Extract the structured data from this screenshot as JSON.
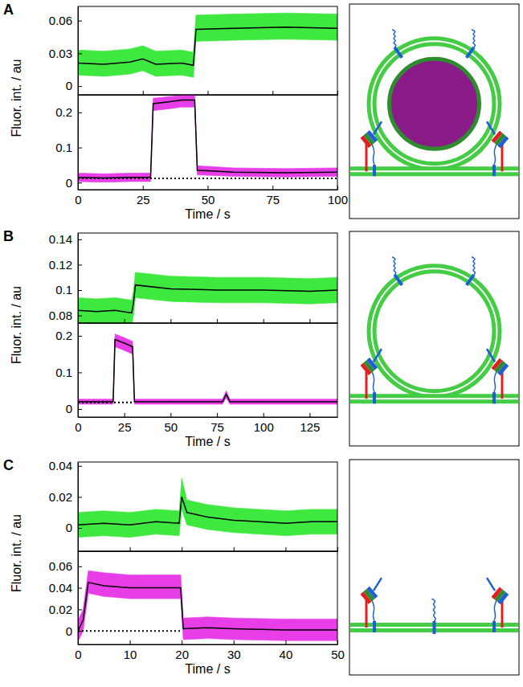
{
  "chart_data": [
    {
      "type": "line",
      "title": "A",
      "y_label": "Fluor. int. / au",
      "tick_labels": "y",
      "xlim": [
        0,
        100
      ],
      "xticks": [
        0,
        25,
        50,
        75,
        100
      ],
      "ylim": [
        -0.008,
        0.073
      ],
      "yticks": [
        0,
        0.03,
        0.06
      ],
      "series": [
        {
          "type": "area",
          "color": "#3ee83e",
          "x": [
            0,
            10,
            20,
            25,
            30,
            40,
            44.5,
            45.5,
            60,
            80,
            100
          ],
          "lower": [
            0.01,
            0.009,
            0.011,
            0.014,
            0.009,
            0.01,
            0.008,
            0.041,
            0.042,
            0.043,
            0.042
          ],
          "upper": [
            0.033,
            0.032,
            0.034,
            0.037,
            0.032,
            0.033,
            0.031,
            0.065,
            0.066,
            0.067,
            0.066
          ]
        },
        {
          "type": "line",
          "color": "#000000",
          "x": [
            0,
            10,
            20,
            25,
            30,
            40,
            44.5,
            45.5,
            60,
            80,
            100
          ],
          "values": [
            0.021,
            0.02,
            0.022,
            0.025,
            0.02,
            0.021,
            0.019,
            0.052,
            0.053,
            0.054,
            0.053
          ]
        }
      ]
    },
    {
      "type": "line",
      "x_label": "Time / s",
      "xlim": [
        0,
        100
      ],
      "xticks": [
        0,
        25,
        50,
        75,
        100
      ],
      "ylim": [
        -0.02,
        0.25
      ],
      "yticks": [
        0,
        0.1,
        0.2
      ],
      "series": [
        {
          "type": "area",
          "color": "#e83ee8",
          "x": [
            0,
            10,
            20,
            28,
            29,
            35,
            40,
            45,
            46,
            60,
            80,
            100
          ],
          "lower": [
            0.003,
            0.001,
            0.003,
            0.003,
            0.205,
            0.21,
            0.215,
            0.215,
            0.022,
            0.018,
            0.016,
            0.018
          ],
          "upper": [
            0.027,
            0.025,
            0.027,
            0.027,
            0.24,
            0.245,
            0.248,
            0.248,
            0.048,
            0.042,
            0.04,
            0.042
          ]
        },
        {
          "type": "line",
          "color": "#000000",
          "x": [
            0,
            10,
            20,
            28,
            29,
            35,
            40,
            45,
            46,
            60,
            80,
            100
          ],
          "values": [
            0.015,
            0.013,
            0.015,
            0.015,
            0.225,
            0.23,
            0.235,
            0.235,
            0.035,
            0.03,
            0.028,
            0.03
          ]
        },
        {
          "type": "line",
          "color": "#000000",
          "line_style": "dotted",
          "x": [
            0,
            100
          ],
          "values": [
            0.012,
            0.012
          ]
        }
      ]
    },
    {
      "type": "line",
      "title": "B",
      "y_label": "Fluor. int. / au",
      "tick_labels": "y",
      "xlim": [
        0,
        140
      ],
      "xticks": [
        0,
        25,
        50,
        75,
        100,
        125
      ],
      "ylim": [
        0.074,
        0.145
      ],
      "yticks": [
        0.08,
        0.1,
        0.12,
        0.14
      ],
      "series": [
        {
          "type": "area",
          "color": "#3ee83e",
          "x": [
            0,
            10,
            20,
            29,
            30,
            31,
            50,
            75,
            100,
            125,
            140
          ],
          "lower": [
            0.074,
            0.073,
            0.074,
            0.072,
            0.08,
            0.094,
            0.091,
            0.09,
            0.09,
            0.089,
            0.09
          ],
          "upper": [
            0.094,
            0.093,
            0.094,
            0.092,
            0.1,
            0.114,
            0.111,
            0.11,
            0.11,
            0.109,
            0.11
          ]
        },
        {
          "type": "line",
          "color": "#000000",
          "x": [
            0,
            10,
            20,
            29,
            30,
            31,
            50,
            75,
            100,
            125,
            140
          ],
          "values": [
            0.084,
            0.083,
            0.084,
            0.082,
            0.09,
            0.104,
            0.101,
            0.1,
            0.1,
            0.099,
            0.1
          ]
        }
      ]
    },
    {
      "type": "line",
      "x_label": "Time / s",
      "xlim": [
        0,
        140
      ],
      "xticks": [
        0,
        25,
        50,
        75,
        100,
        125
      ],
      "ylim": [
        -0.022,
        0.235
      ],
      "yticks": [
        0,
        0.1,
        0.2
      ],
      "series": [
        {
          "type": "area",
          "color": "#e83ee8",
          "x": [
            0,
            10,
            19,
            20,
            25,
            29.5,
            30.5,
            50,
            78,
            80,
            82,
            100,
            140
          ],
          "lower": [
            0.013,
            0.013,
            0.013,
            0.17,
            0.16,
            0.15,
            0.013,
            0.013,
            0.013,
            0.03,
            0.013,
            0.013,
            0.013
          ],
          "upper": [
            0.027,
            0.027,
            0.027,
            0.205,
            0.195,
            0.185,
            0.027,
            0.027,
            0.027,
            0.05,
            0.027,
            0.027,
            0.027
          ]
        },
        {
          "type": "line",
          "color": "#000000",
          "x": [
            0,
            10,
            19,
            20,
            25,
            29.5,
            30.5,
            50,
            78,
            80,
            82,
            100,
            140
          ],
          "values": [
            0.02,
            0.02,
            0.02,
            0.19,
            0.18,
            0.17,
            0.02,
            0.02,
            0.02,
            0.04,
            0.02,
            0.02,
            0.02
          ]
        },
        {
          "type": "line",
          "color": "#000000",
          "line_style": "dotted",
          "x": [
            0,
            30
          ],
          "values": [
            0.018,
            0.018
          ]
        }
      ]
    },
    {
      "type": "line",
      "title": "C",
      "y_label": "Fluor. int. / au",
      "tick_labels": "y",
      "xlim": [
        0,
        50
      ],
      "xticks": [
        0,
        10,
        20,
        30,
        40,
        50
      ],
      "ylim": [
        -0.015,
        0.0425
      ],
      "yticks": [
        0,
        0.02,
        0.04
      ],
      "series": [
        {
          "type": "area",
          "color": "#3ee83e",
          "x": [
            0,
            5,
            10,
            15,
            19.5,
            20,
            21,
            25,
            30,
            35,
            40,
            45,
            50
          ],
          "lower": [
            -0.006,
            -0.005,
            -0.006,
            -0.004,
            -0.005,
            0.012,
            0.002,
            -0.001,
            -0.003,
            -0.004,
            -0.005,
            -0.004,
            -0.004
          ],
          "upper": [
            0.01,
            0.011,
            0.01,
            0.012,
            0.011,
            0.032,
            0.018,
            0.015,
            0.013,
            0.012,
            0.011,
            0.012,
            0.012
          ]
        },
        {
          "type": "line",
          "color": "#000000",
          "x": [
            0,
            5,
            10,
            15,
            19.5,
            20,
            21,
            25,
            30,
            35,
            40,
            45,
            50
          ],
          "values": [
            0.002,
            0.003,
            0.002,
            0.004,
            0.003,
            0.02,
            0.01,
            0.007,
            0.005,
            0.004,
            0.003,
            0.004,
            0.004
          ]
        }
      ]
    },
    {
      "type": "line",
      "x_label": "Time / s",
      "xlim": [
        0,
        50
      ],
      "xticks": [
        0,
        10,
        20,
        30,
        40,
        50
      ],
      "ylim": [
        -0.0125,
        0.074
      ],
      "yticks": [
        0,
        0.02,
        0.04,
        0.06
      ],
      "series": [
        {
          "type": "area",
          "color": "#e83ee8",
          "x": [
            0,
            1,
            2,
            5,
            10,
            15,
            19.8,
            20.3,
            25,
            30,
            40,
            50
          ],
          "lower": [
            -0.01,
            0,
            0.035,
            0.032,
            0.03,
            0.03,
            0.03,
            -0.008,
            -0.007,
            -0.008,
            -0.009,
            -0.009
          ],
          "upper": [
            0.01,
            0.02,
            0.056,
            0.054,
            0.052,
            0.052,
            0.052,
            0.012,
            0.013,
            0.012,
            0.011,
            0.011
          ]
        },
        {
          "type": "line",
          "color": "#000000",
          "x": [
            0,
            1,
            2,
            5,
            10,
            15,
            19.8,
            20.3,
            25,
            30,
            40,
            50
          ],
          "values": [
            0,
            0.01,
            0.045,
            0.042,
            0.04,
            0.04,
            0.04,
            0.002,
            0.003,
            0.002,
            0.001,
            0.001
          ]
        },
        {
          "type": "line",
          "color": "#000000",
          "line_style": "dotted",
          "x": [
            0,
            20
          ],
          "values": [
            0,
            0
          ]
        }
      ]
    }
  ]
}
